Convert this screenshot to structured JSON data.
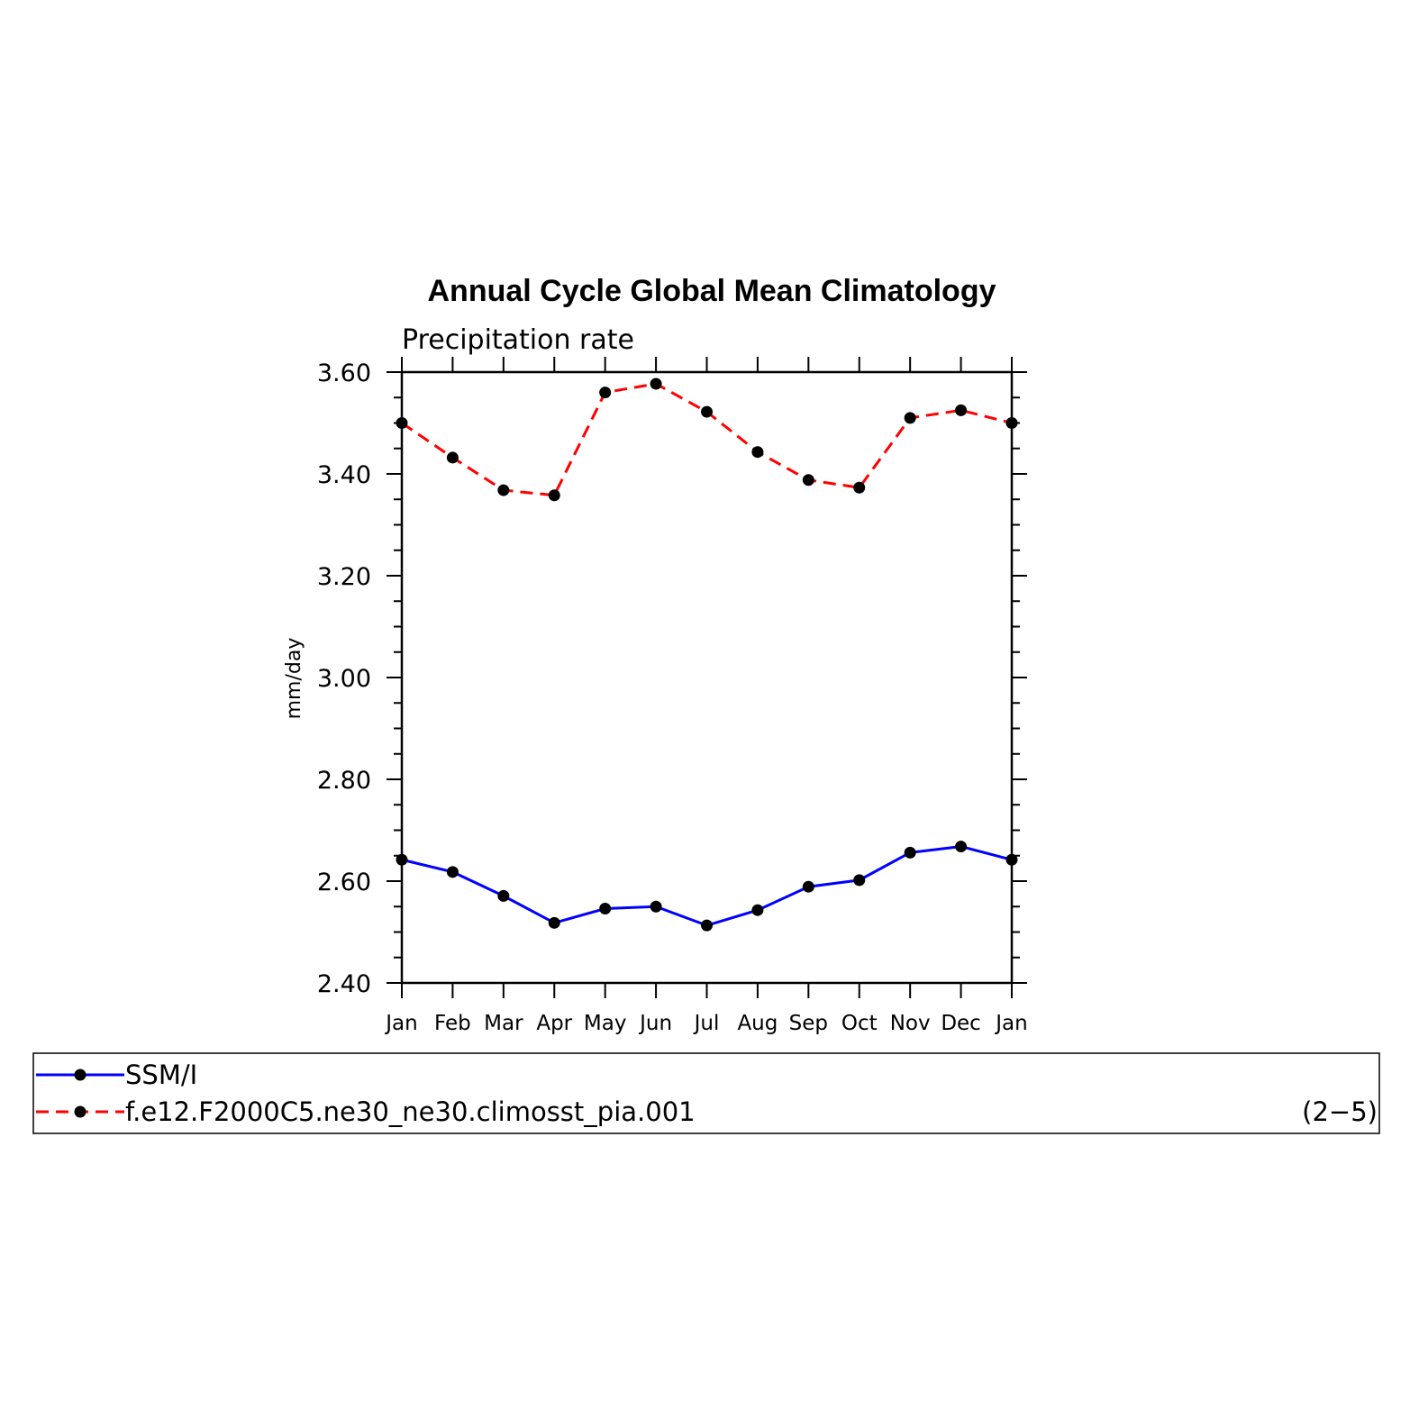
{
  "chart_data": {
    "type": "line",
    "title": "Annual Cycle Global Mean Climatology",
    "subtitle": "Precipitation rate",
    "ylabel": "mm/day",
    "xlabel": "",
    "ylim": [
      2.4,
      3.6
    ],
    "yticks": [
      "2.40",
      "2.60",
      "2.80",
      "3.00",
      "3.20",
      "3.40",
      "3.60"
    ],
    "categories": [
      "Jan",
      "Feb",
      "Mar",
      "Apr",
      "May",
      "Jun",
      "Jul",
      "Aug",
      "Sep",
      "Oct",
      "Nov",
      "Dec",
      "Jan"
    ],
    "series": [
      {
        "name": "SSM/I",
        "color": "#0000ff",
        "style": "solid",
        "marker": "filled-circle",
        "values": [
          2.642,
          2.618,
          2.571,
          2.518,
          2.546,
          2.55,
          2.513,
          2.543,
          2.589,
          2.602,
          2.656,
          2.668,
          2.642
        ]
      },
      {
        "name": "f.e12.F2000C5.ne30_ne30.climosst_pia.001",
        "color": "#ff0000",
        "style": "dashed",
        "marker": "filled-circle",
        "values": [
          3.5,
          3.432,
          3.368,
          3.358,
          3.56,
          3.577,
          3.522,
          3.443,
          3.388,
          3.373,
          3.51,
          3.525,
          3.5
        ]
      }
    ],
    "legend_position": "bottom",
    "panel_label": "(2−5)",
    "grid": false
  }
}
